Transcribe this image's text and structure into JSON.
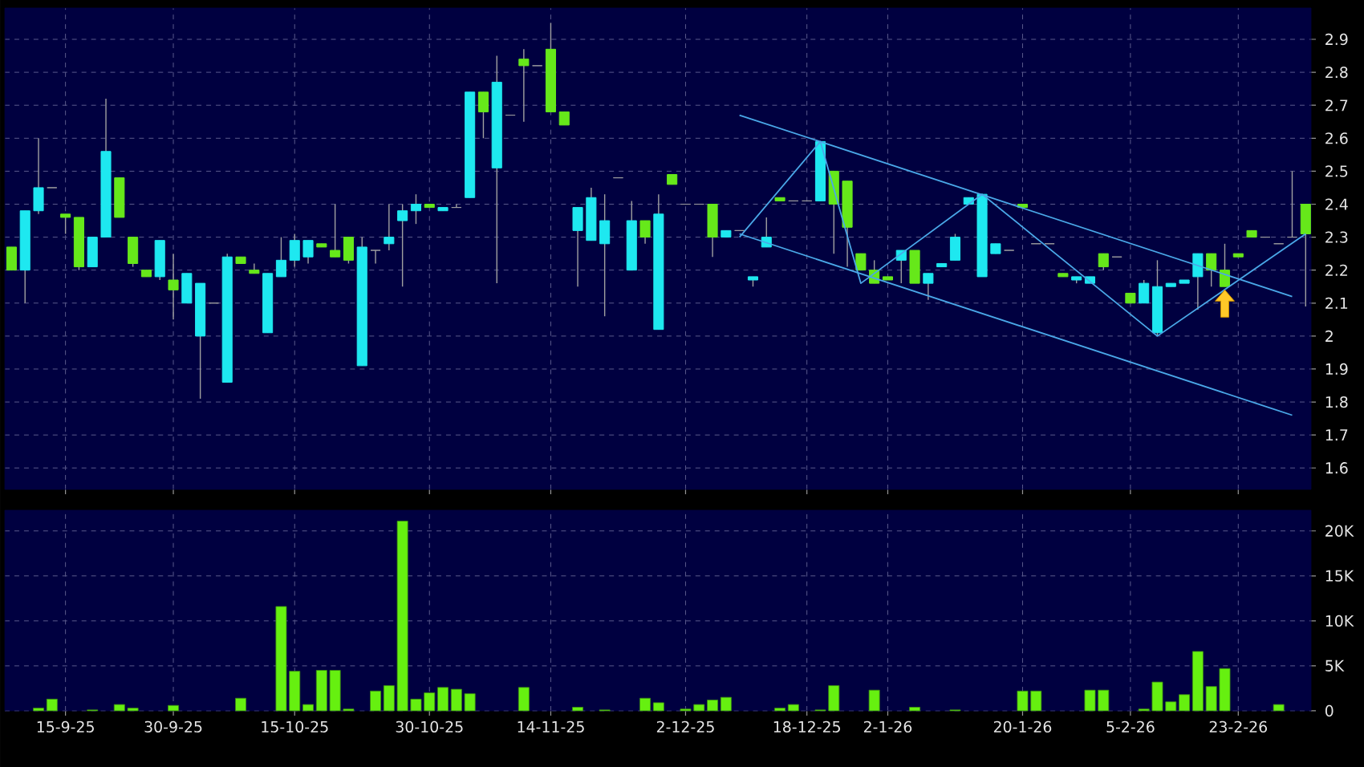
{
  "chart_data": [
    {
      "type": "candlestick",
      "categories": [
        null,
        null,
        null,
        null,
        null,
        null,
        null,
        null,
        null,
        null,
        null,
        null,
        null,
        null,
        null,
        null,
        null,
        null,
        null,
        null,
        null,
        null,
        null,
        null,
        null,
        null,
        null,
        null,
        null,
        null,
        null,
        null,
        null,
        null,
        null,
        null,
        null,
        null,
        null,
        null,
        null,
        null,
        null,
        null,
        null,
        null,
        null,
        null,
        null,
        null,
        null,
        null,
        null,
        null,
        null,
        null,
        null,
        null,
        null,
        null,
        null,
        null,
        null,
        null,
        null,
        null,
        null,
        null,
        null,
        null,
        null,
        null,
        null,
        null,
        null,
        null,
        null,
        null,
        null,
        null,
        null,
        null,
        null,
        null,
        null,
        null,
        null,
        null,
        null,
        null,
        null,
        null,
        null,
        null,
        null,
        null,
        null
      ],
      "ohlc": [
        [
          2.27,
          2.27,
          2.2,
          2.2
        ],
        [
          2.2,
          2.38,
          2.1,
          2.38
        ],
        [
          2.38,
          2.6,
          2.37,
          2.45
        ],
        [
          2.45,
          2.45,
          2.45,
          2.45
        ],
        [
          2.37,
          2.37,
          2.31,
          2.36
        ],
        [
          2.36,
          2.36,
          2.2,
          2.21
        ],
        [
          2.21,
          2.3,
          2.21,
          2.3
        ],
        [
          2.3,
          2.72,
          2.3,
          2.56
        ],
        [
          2.48,
          2.48,
          2.36,
          2.36
        ],
        [
          2.3,
          2.3,
          2.21,
          2.22
        ],
        [
          2.2,
          2.2,
          2.18,
          2.18
        ],
        [
          2.18,
          2.29,
          2.17,
          2.29
        ],
        [
          2.17,
          2.25,
          2.05,
          2.14
        ],
        [
          2.1,
          2.19,
          2.1,
          2.19
        ],
        [
          2.0,
          2.16,
          1.81,
          2.16
        ],
        [
          2.1,
          2.1,
          2.1,
          2.1
        ],
        [
          1.86,
          2.25,
          1.86,
          2.24
        ],
        [
          2.24,
          2.24,
          2.22,
          2.22
        ],
        [
          2.2,
          2.22,
          2.19,
          2.19
        ],
        [
          2.01,
          2.19,
          2.01,
          2.19
        ],
        [
          2.18,
          2.3,
          2.18,
          2.23
        ],
        [
          2.23,
          2.31,
          2.21,
          2.29
        ],
        [
          2.24,
          2.29,
          2.22,
          2.29
        ],
        [
          2.28,
          2.28,
          2.27,
          2.27
        ],
        [
          2.26,
          2.4,
          2.24,
          2.24
        ],
        [
          2.3,
          2.3,
          2.22,
          2.23
        ],
        [
          1.91,
          2.3,
          1.91,
          2.27
        ],
        [
          2.26,
          2.26,
          2.22,
          2.26
        ],
        [
          2.28,
          2.4,
          2.26,
          2.3
        ],
        [
          2.35,
          2.4,
          2.15,
          2.38
        ],
        [
          2.38,
          2.43,
          2.34,
          2.4
        ],
        [
          2.4,
          2.4,
          2.39,
          2.39
        ],
        [
          2.38,
          2.39,
          2.38,
          2.39
        ],
        [
          2.39,
          2.4,
          2.39,
          2.39
        ],
        [
          2.42,
          2.74,
          2.42,
          2.74
        ],
        [
          2.74,
          2.74,
          2.6,
          2.68
        ],
        [
          2.51,
          2.85,
          2.16,
          2.77
        ],
        [
          2.67,
          2.67,
          2.67,
          2.67
        ],
        [
          2.84,
          2.87,
          2.65,
          2.82
        ],
        [
          2.82,
          2.82,
          2.82,
          2.82
        ],
        [
          2.87,
          2.95,
          2.68,
          2.68
        ],
        [
          2.68,
          2.68,
          2.64,
          2.64
        ],
        [
          2.32,
          2.39,
          2.15,
          2.39
        ],
        [
          2.29,
          2.45,
          2.29,
          2.42
        ],
        [
          2.28,
          2.43,
          2.06,
          2.35
        ],
        [
          2.48,
          2.48,
          2.48,
          2.48
        ],
        [
          2.2,
          2.41,
          2.2,
          2.35
        ],
        [
          2.35,
          2.35,
          2.28,
          2.3
        ],
        [
          2.02,
          2.43,
          2.02,
          2.37
        ],
        [
          2.49,
          2.49,
          2.46,
          2.46
        ],
        [
          2.4,
          2.4,
          2.4,
          2.4
        ],
        [
          2.4,
          2.4,
          2.4,
          2.4
        ],
        [
          2.4,
          2.4,
          2.24,
          2.3
        ],
        [
          2.3,
          2.32,
          2.3,
          2.32
        ],
        [
          2.32,
          2.32,
          2.32,
          2.32
        ],
        [
          2.17,
          2.18,
          2.15,
          2.18
        ],
        [
          2.27,
          2.36,
          2.27,
          2.3
        ],
        [
          2.42,
          2.42,
          2.41,
          2.41
        ],
        [
          2.41,
          2.41,
          2.41,
          2.41
        ],
        [
          2.41,
          2.41,
          2.41,
          2.41
        ],
        [
          2.41,
          2.59,
          2.41,
          2.59
        ],
        [
          2.5,
          2.5,
          2.25,
          2.4
        ],
        [
          2.47,
          2.47,
          2.21,
          2.33
        ],
        [
          2.25,
          2.25,
          2.2,
          2.2
        ],
        [
          2.2,
          2.23,
          2.16,
          2.16
        ],
        [
          2.18,
          2.18,
          2.17,
          2.17
        ],
        [
          2.23,
          2.26,
          2.16,
          2.26
        ],
        [
          2.26,
          2.26,
          2.16,
          2.16
        ],
        [
          2.16,
          2.19,
          2.11,
          2.19
        ],
        [
          2.21,
          2.22,
          2.21,
          2.22
        ],
        [
          2.23,
          2.31,
          2.23,
          2.3
        ],
        [
          2.4,
          2.42,
          2.4,
          2.42
        ],
        [
          2.18,
          2.43,
          2.18,
          2.43
        ],
        [
          2.25,
          2.28,
          2.25,
          2.28
        ],
        [
          2.26,
          2.26,
          2.26,
          2.26
        ],
        [
          2.4,
          2.4,
          2.39,
          2.39
        ],
        [
          2.28,
          2.28,
          2.28,
          2.28
        ],
        [
          2.28,
          2.28,
          2.28,
          2.28
        ],
        [
          2.19,
          2.19,
          2.18,
          2.18
        ],
        [
          2.17,
          2.18,
          2.16,
          2.18
        ],
        [
          2.16,
          2.18,
          2.16,
          2.18
        ],
        [
          2.25,
          2.25,
          2.2,
          2.21
        ],
        [
          2.24,
          2.24,
          2.24,
          2.24
        ],
        [
          2.13,
          2.13,
          2.1,
          2.1
        ],
        [
          2.1,
          2.17,
          2.1,
          2.16
        ],
        [
          2.01,
          2.23,
          2.0,
          2.15
        ],
        [
          2.15,
          2.16,
          2.15,
          2.16
        ],
        [
          2.16,
          2.17,
          2.16,
          2.17
        ],
        [
          2.18,
          2.25,
          2.08,
          2.25
        ],
        [
          2.25,
          2.25,
          2.15,
          2.2
        ],
        [
          2.2,
          2.28,
          2.15,
          2.15
        ],
        [
          2.25,
          2.25,
          2.24,
          2.24
        ],
        [
          2.32,
          2.32,
          2.3,
          2.3
        ],
        [
          2.3,
          2.3,
          2.3,
          2.3
        ],
        [
          2.28,
          2.28,
          2.28,
          2.28
        ],
        [
          2.3,
          2.5,
          2.3,
          2.3
        ],
        [
          2.4,
          2.4,
          2.09,
          2.31
        ]
      ],
      "colors": [
        "#66e81a",
        "#1ee8f0",
        "#1ee8f0",
        "#a0a0a0",
        "#66e81a",
        "#66e81a",
        "#1ee8f0",
        "#1ee8f0",
        "#66e81a",
        "#66e81a",
        "#66e81a",
        "#1ee8f0",
        "#66e81a",
        "#1ee8f0",
        "#1ee8f0",
        "#a0a0a0",
        "#1ee8f0",
        "#66e81a",
        "#66e81a",
        "#1ee8f0",
        "#1ee8f0",
        "#1ee8f0",
        "#1ee8f0",
        "#66e81a",
        "#66e81a",
        "#66e81a",
        "#1ee8f0",
        "#a0a0a0",
        "#1ee8f0",
        "#1ee8f0",
        "#1ee8f0",
        "#66e81a",
        "#1ee8f0",
        "#a0a0a0",
        "#1ee8f0",
        "#66e81a",
        "#1ee8f0",
        "#a0a0a0",
        "#66e81a",
        "#a0a0a0",
        "#66e81a",
        "#66e81a",
        "#1ee8f0",
        "#1ee8f0",
        "#1ee8f0",
        "#a0a0a0",
        "#1ee8f0",
        "#66e81a",
        "#1ee8f0",
        "#66e81a",
        "#a0a0a0",
        "#a0a0a0",
        "#66e81a",
        "#1ee8f0",
        "#a0a0a0",
        "#1ee8f0",
        "#1ee8f0",
        "#66e81a",
        "#a0a0a0",
        "#a0a0a0",
        "#1ee8f0",
        "#66e81a",
        "#66e81a",
        "#66e81a",
        "#66e81a",
        "#66e81a",
        "#1ee8f0",
        "#66e81a",
        "#1ee8f0",
        "#1ee8f0",
        "#1ee8f0",
        "#1ee8f0",
        "#1ee8f0",
        "#1ee8f0",
        "#a0a0a0",
        "#66e81a",
        "#a0a0a0",
        "#a0a0a0",
        "#66e81a",
        "#1ee8f0",
        "#1ee8f0",
        "#66e81a",
        "#a0a0a0",
        "#66e81a",
        "#1ee8f0",
        "#1ee8f0",
        "#1ee8f0",
        "#1ee8f0",
        "#1ee8f0",
        "#66e81a",
        "#66e81a",
        "#66e81a",
        "#66e81a",
        "#a0a0a0",
        "#a0a0a0",
        "#a0a0a0",
        "#66e81a"
      ],
      "series": [
        {
          "type": "line",
          "color": "#4aa8e8",
          "values": [
            null,
            null,
            null,
            null,
            null,
            null,
            null,
            null,
            null,
            null,
            null,
            null,
            null,
            null,
            null,
            null,
            null,
            null,
            null,
            null,
            null,
            null,
            null,
            null,
            null,
            null,
            null,
            null,
            null,
            null,
            null,
            null,
            null,
            null,
            null,
            null,
            null,
            null,
            null,
            null,
            null,
            null,
            null,
            null,
            null,
            null,
            null,
            null,
            null,
            null,
            null,
            null,
            null,
            null,
            2.67,
            null,
            null,
            null,
            null,
            null,
            null,
            null,
            null,
            null,
            null,
            null,
            null,
            null,
            null,
            null,
            null,
            null,
            null,
            null,
            null,
            null,
            null,
            null,
            null,
            null,
            null,
            null,
            null,
            null,
            null,
            null,
            null,
            null,
            null,
            null,
            null,
            null,
            null,
            null,
            null,
            2.12,
            null
          ]
        },
        {
          "type": "line",
          "color": "#4aa8e8",
          "values": [
            null,
            null,
            null,
            null,
            null,
            null,
            null,
            null,
            null,
            null,
            null,
            null,
            null,
            null,
            null,
            null,
            null,
            null,
            null,
            null,
            null,
            null,
            null,
            null,
            null,
            null,
            null,
            null,
            null,
            null,
            null,
            null,
            null,
            null,
            null,
            null,
            null,
            null,
            null,
            null,
            null,
            null,
            null,
            null,
            null,
            null,
            null,
            null,
            null,
            null,
            null,
            null,
            null,
            null,
            2.31,
            null,
            null,
            null,
            null,
            null,
            null,
            null,
            null,
            null,
            null,
            null,
            null,
            null,
            null,
            null,
            null,
            null,
            null,
            null,
            null,
            null,
            null,
            null,
            null,
            null,
            null,
            null,
            null,
            null,
            null,
            null,
            null,
            null,
            null,
            null,
            null,
            null,
            null,
            null,
            null,
            1.76,
            null
          ]
        },
        {
          "type": "line",
          "color": "#4aa8e8",
          "values": [
            null,
            null,
            null,
            null,
            null,
            null,
            null,
            null,
            null,
            null,
            null,
            null,
            null,
            null,
            null,
            null,
            null,
            null,
            null,
            null,
            null,
            null,
            null,
            null,
            null,
            null,
            null,
            null,
            null,
            null,
            null,
            null,
            null,
            null,
            null,
            null,
            null,
            null,
            null,
            null,
            null,
            null,
            null,
            null,
            null,
            null,
            null,
            null,
            null,
            null,
            null,
            null,
            null,
            null,
            2.3,
            null,
            null,
            null,
            null,
            null,
            2.59,
            null,
            null,
            2.16,
            null,
            null,
            null,
            null,
            null,
            null,
            null,
            null,
            2.43,
            null,
            null,
            null,
            null,
            null,
            null,
            null,
            null,
            null,
            null,
            null,
            null,
            2.0,
            null,
            null,
            null,
            null,
            null,
            null,
            null,
            null,
            null,
            null,
            2.31
          ]
        }
      ],
      "ylim": [
        1.535,
        2.995
      ],
      "yticks": [
        1.6,
        1.7,
        1.8,
        1.9,
        2,
        2.1,
        2.2,
        2.3,
        2.4,
        2.5,
        2.6,
        2.7,
        2.8,
        2.9
      ],
      "grid": true,
      "tick_labels": "y"
    },
    {
      "type": "bar",
      "categories": [
        null,
        null,
        null,
        null,
        "15-9-25",
        null,
        null,
        null,
        null,
        null,
        null,
        null,
        "30-9-25",
        null,
        null,
        null,
        null,
        null,
        null,
        null,
        null,
        "15-10-25",
        null,
        null,
        null,
        null,
        null,
        null,
        null,
        null,
        null,
        "30-10-25",
        null,
        null,
        null,
        null,
        null,
        null,
        null,
        null,
        "14-11-25",
        null,
        null,
        null,
        null,
        null,
        null,
        null,
        null,
        null,
        "2-12-25",
        null,
        null,
        null,
        null,
        null,
        null,
        null,
        null,
        "18-12-25",
        null,
        null,
        null,
        null,
        null,
        "2-1-26",
        null,
        null,
        null,
        null,
        null,
        null,
        null,
        null,
        null,
        "20-1-26",
        null,
        null,
        null,
        null,
        null,
        null,
        null,
        "5-2-26",
        null,
        null,
        null,
        null,
        null,
        null,
        null,
        "23-2-26",
        null,
        null,
        null,
        null,
        null
      ],
      "values": [
        null,
        null,
        300,
        1300,
        null,
        null,
        100,
        null,
        700,
        300,
        null,
        null,
        600,
        null,
        null,
        null,
        null,
        1400,
        null,
        null,
        11600,
        4400,
        700,
        4500,
        4500,
        200,
        null,
        2200,
        2800,
        21100,
        1300,
        2000,
        2600,
        2400,
        1900,
        null,
        null,
        null,
        2600,
        null,
        null,
        null,
        400,
        null,
        100,
        null,
        null,
        1400,
        900,
        null,
        200,
        700,
        1200,
        1500,
        null,
        null,
        null,
        300,
        700,
        null,
        100,
        2800,
        null,
        null,
        2300,
        null,
        null,
        400,
        null,
        null,
        100,
        null,
        null,
        null,
        null,
        2200,
        2200,
        null,
        null,
        null,
        2300,
        2300,
        null,
        null,
        200,
        3200,
        1000,
        1800,
        6600,
        2700,
        4700,
        null,
        null,
        null,
        700,
        null,
        null
      ],
      "color": "#66f010",
      "ylim": [
        0,
        22300
      ],
      "yticks": [
        0,
        {
          "value": 5000,
          "label": "5K"
        },
        {
          "value": 10000,
          "label": "10K"
        },
        {
          "value": 15000,
          "label": "15K"
        },
        {
          "value": 20000,
          "label": "20K"
        }
      ],
      "grid": true
    }
  ]
}
